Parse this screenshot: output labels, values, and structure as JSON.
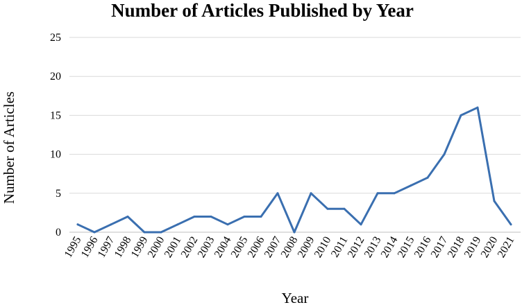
{
  "chart_data": {
    "type": "line",
    "title": "Number of Articles Published by Year",
    "xlabel": "Year",
    "ylabel": "Number of Articles",
    "ylim": [
      0,
      25
    ],
    "yticks": [
      0,
      5,
      10,
      15,
      20,
      25
    ],
    "grid": true,
    "legend": "none",
    "categories": [
      "1995",
      "1996",
      "1997",
      "1998",
      "1999",
      "2000",
      "2001",
      "2002",
      "2003",
      "2004",
      "2005",
      "2006",
      "2007",
      "2008",
      "2009",
      "2010",
      "2011",
      "2012",
      "2013",
      "2014",
      "2015",
      "2016",
      "2017",
      "2018",
      "2019",
      "2020",
      "2021"
    ],
    "series": [
      {
        "name": "",
        "color": "#3a6fb0",
        "values": [
          1,
          0,
          1,
          2,
          0,
          0,
          1,
          2,
          2,
          1,
          2,
          2,
          5,
          0,
          5,
          3,
          3,
          1,
          5,
          5,
          6,
          7,
          10,
          15,
          16,
          4,
          1
        ]
      }
    ]
  }
}
